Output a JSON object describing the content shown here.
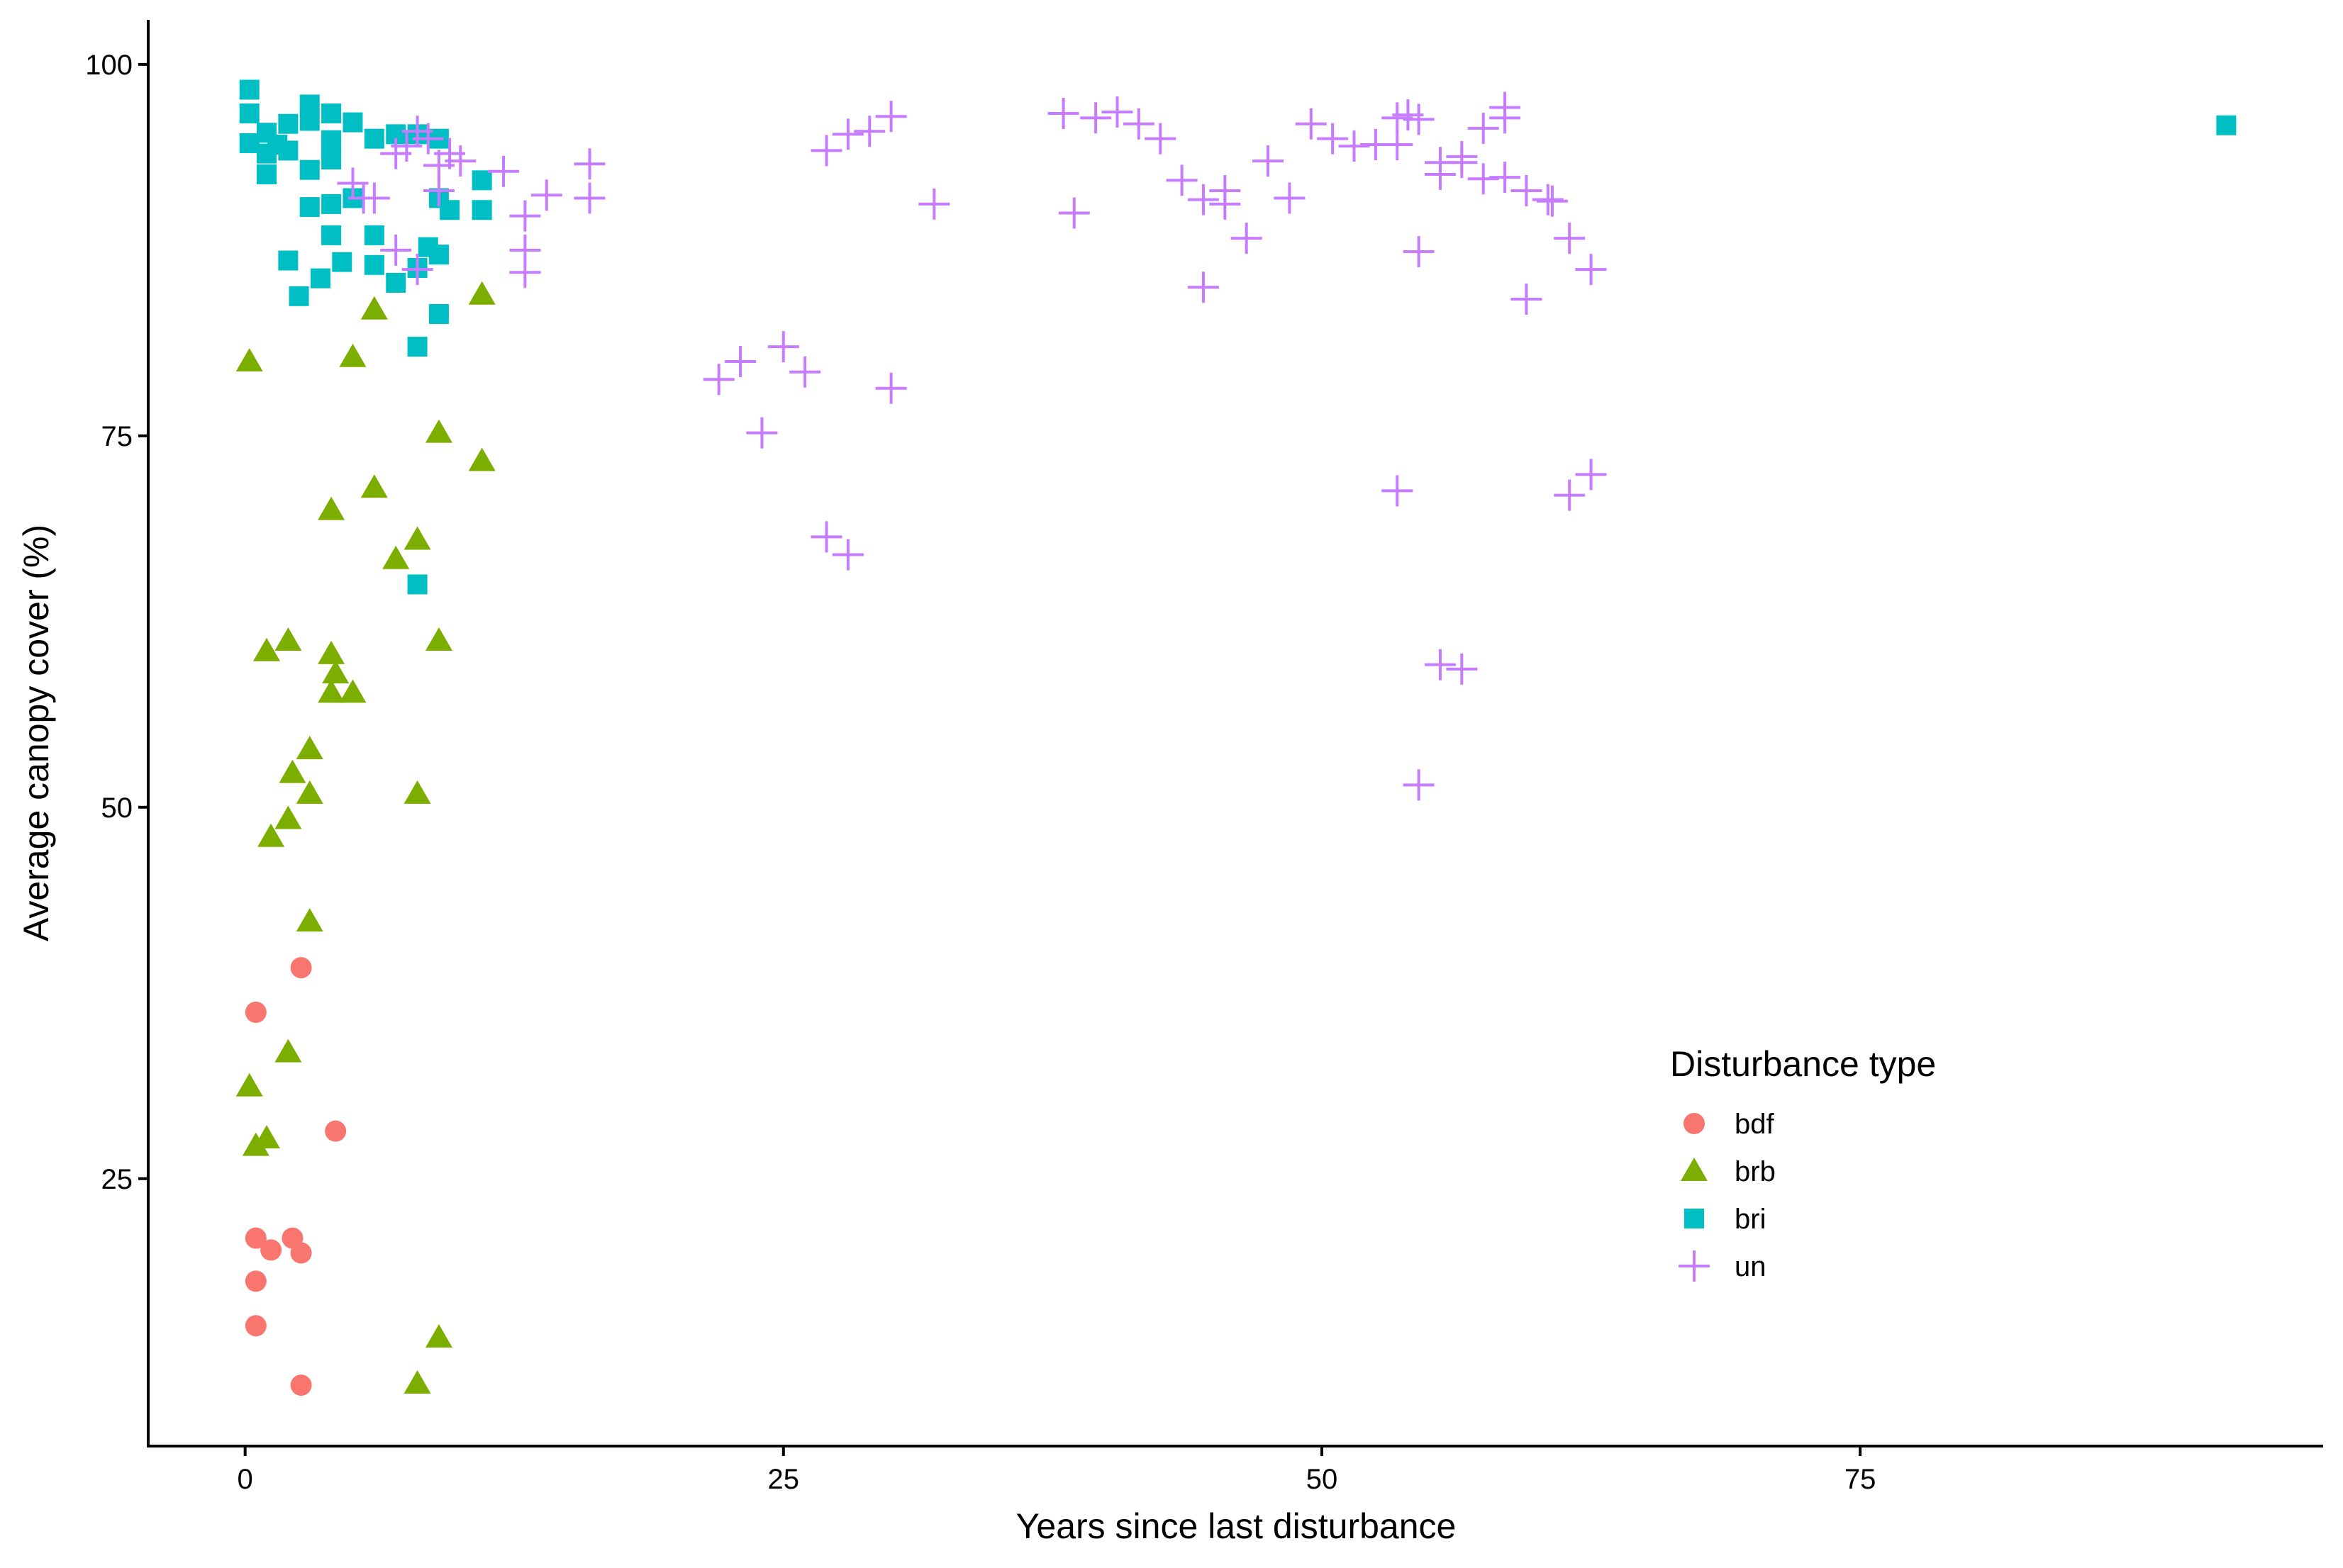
{
  "chart_data": {
    "type": "scatter",
    "title": "",
    "xlabel": "Years since last disturbance",
    "ylabel": "Average canopy cover (%)",
    "xlim": [
      -4.5,
      96.5
    ],
    "ylim": [
      7,
      103
    ],
    "x_ticks": [
      0,
      25,
      50,
      75
    ],
    "y_ticks": [
      25,
      50,
      75,
      100
    ],
    "grid": false,
    "legend": {
      "title": "Disturbance type",
      "placement": "right-inside"
    },
    "series": [
      {
        "name": "bdf",
        "shape": "circle",
        "color": "#F8766D",
        "points": [
          [
            2.6,
            39.2
          ],
          [
            0.5,
            36.2
          ],
          [
            4.2,
            28.2
          ],
          [
            0.5,
            21.0
          ],
          [
            1.2,
            20.2
          ],
          [
            2.2,
            21.0
          ],
          [
            2.6,
            20.0
          ],
          [
            0.5,
            18.1
          ],
          [
            0.5,
            15.1
          ],
          [
            2.6,
            11.1
          ]
        ]
      },
      {
        "name": "brb",
        "shape": "triangle",
        "color": "#7CAE00",
        "points": [
          [
            0.2,
            80.0
          ],
          [
            6.0,
            83.5
          ],
          [
            11.0,
            84.5
          ],
          [
            5.0,
            80.3
          ],
          [
            9.0,
            75.2
          ],
          [
            11.0,
            73.3
          ],
          [
            6.0,
            71.5
          ],
          [
            4.0,
            70.0
          ],
          [
            8.0,
            68.0
          ],
          [
            7.0,
            66.7
          ],
          [
            1.0,
            60.5
          ],
          [
            2.0,
            61.2
          ],
          [
            4.0,
            60.3
          ],
          [
            4.2,
            59.0
          ],
          [
            4.0,
            57.7
          ],
          [
            5.0,
            57.7
          ],
          [
            9.0,
            61.2
          ],
          [
            3.0,
            53.9
          ],
          [
            2.2,
            52.3
          ],
          [
            3.0,
            50.9
          ],
          [
            8.0,
            50.9
          ],
          [
            2.0,
            49.2
          ],
          [
            1.2,
            48.0
          ],
          [
            3.0,
            42.3
          ],
          [
            2.0,
            33.5
          ],
          [
            0.2,
            31.2
          ],
          [
            1.0,
            27.7
          ],
          [
            0.5,
            27.2
          ],
          [
            9.0,
            14.3
          ],
          [
            8.0,
            11.2
          ]
        ]
      },
      {
        "name": "bri",
        "shape": "square",
        "color": "#00BFC4",
        "points": [
          [
            0.2,
            98.3
          ],
          [
            0.2,
            96.7
          ],
          [
            0.2,
            94.7
          ],
          [
            1.0,
            95.4
          ],
          [
            1.0,
            94.0
          ],
          [
            1.0,
            92.6
          ],
          [
            1.5,
            94.6
          ],
          [
            2.0,
            96.0
          ],
          [
            2.0,
            94.2
          ],
          [
            3.0,
            97.3
          ],
          [
            3.0,
            96.2
          ],
          [
            3.0,
            92.9
          ],
          [
            3.0,
            90.4
          ],
          [
            4.0,
            96.7
          ],
          [
            4.0,
            94.9
          ],
          [
            4.0,
            93.6
          ],
          [
            4.0,
            90.6
          ],
          [
            4.0,
            88.5
          ],
          [
            5.0,
            96.1
          ],
          [
            5.0,
            91.0
          ],
          [
            6.0,
            95.0
          ],
          [
            6.0,
            88.5
          ],
          [
            6.0,
            86.5
          ],
          [
            7.0,
            95.3
          ],
          [
            7.0,
            85.3
          ],
          [
            8.0,
            95.3
          ],
          [
            8.0,
            86.3
          ],
          [
            8.0,
            81.0
          ],
          [
            8.0,
            65.0
          ],
          [
            8.5,
            87.7
          ],
          [
            9.0,
            95.0
          ],
          [
            9.0,
            91.0
          ],
          [
            9.0,
            87.2
          ],
          [
            9.0,
            83.2
          ],
          [
            9.5,
            90.2
          ],
          [
            11.0,
            92.2
          ],
          [
            11.0,
            90.2
          ],
          [
            2.0,
            86.8
          ],
          [
            2.5,
            84.4
          ],
          [
            3.5,
            85.6
          ],
          [
            4.5,
            86.7
          ],
          [
            92.0,
            95.9
          ]
        ]
      },
      {
        "name": "un",
        "shape": "cross",
        "color": "#C77CFF",
        "points": [
          [
            5.0,
            92.0
          ],
          [
            5.5,
            91.0
          ],
          [
            6.0,
            91.0
          ],
          [
            7.0,
            94.0
          ],
          [
            7.5,
            94.5
          ],
          [
            8.0,
            95.5
          ],
          [
            8.5,
            95.0
          ],
          [
            9.0,
            93.2
          ],
          [
            9.0,
            91.5
          ],
          [
            9.5,
            94.0
          ],
          [
            10.0,
            93.5
          ],
          [
            12.0,
            92.8
          ],
          [
            13.0,
            89.8
          ],
          [
            13.0,
            87.5
          ],
          [
            13.0,
            86.0
          ],
          [
            14.0,
            91.2
          ],
          [
            16.0,
            93.3
          ],
          [
            16.0,
            91.0
          ],
          [
            7.0,
            87.5
          ],
          [
            8.0,
            86.2
          ],
          [
            22.0,
            78.8
          ],
          [
            23.0,
            80.0
          ],
          [
            24.0,
            75.2
          ],
          [
            25.0,
            81.0
          ],
          [
            26.0,
            79.3
          ],
          [
            27.0,
            68.2
          ],
          [
            28.0,
            67.0
          ],
          [
            27.0,
            94.2
          ],
          [
            28.0,
            95.3
          ],
          [
            29.0,
            95.5
          ],
          [
            30.0,
            96.5
          ],
          [
            30.0,
            78.2
          ],
          [
            32.0,
            90.6
          ],
          [
            38.0,
            96.7
          ],
          [
            38.5,
            90.0
          ],
          [
            39.5,
            96.4
          ],
          [
            40.5,
            96.8
          ],
          [
            41.5,
            96.0
          ],
          [
            42.5,
            95.0
          ],
          [
            43.5,
            92.2
          ],
          [
            44.5,
            90.9
          ],
          [
            44.5,
            85.0
          ],
          [
            45.5,
            91.5
          ],
          [
            45.5,
            90.6
          ],
          [
            46.5,
            88.3
          ],
          [
            47.5,
            93.5
          ],
          [
            48.5,
            91.0
          ],
          [
            49.5,
            96.0
          ],
          [
            50.5,
            95.0
          ],
          [
            51.5,
            94.5
          ],
          [
            52.5,
            94.6
          ],
          [
            53.5,
            94.6
          ],
          [
            53.5,
            96.4
          ],
          [
            54.0,
            96.6
          ],
          [
            54.5,
            96.3
          ],
          [
            54.5,
            87.4
          ],
          [
            55.5,
            93.4
          ],
          [
            55.5,
            92.6
          ],
          [
            56.5,
            93.8
          ],
          [
            56.5,
            93.4
          ],
          [
            57.5,
            95.7
          ],
          [
            57.5,
            92.3
          ],
          [
            58.5,
            92.4
          ],
          [
            58.5,
            96.4
          ],
          [
            58.5,
            97.1
          ],
          [
            59.5,
            91.5
          ],
          [
            60.5,
            90.9
          ],
          [
            60.7,
            90.8
          ],
          [
            61.5,
            88.3
          ],
          [
            62.5,
            86.2
          ],
          [
            59.5,
            84.2
          ],
          [
            53.5,
            71.3
          ],
          [
            61.5,
            71.0
          ],
          [
            62.5,
            72.4
          ],
          [
            55.5,
            59.6
          ],
          [
            56.5,
            59.3
          ],
          [
            54.5,
            51.5
          ]
        ]
      }
    ]
  }
}
